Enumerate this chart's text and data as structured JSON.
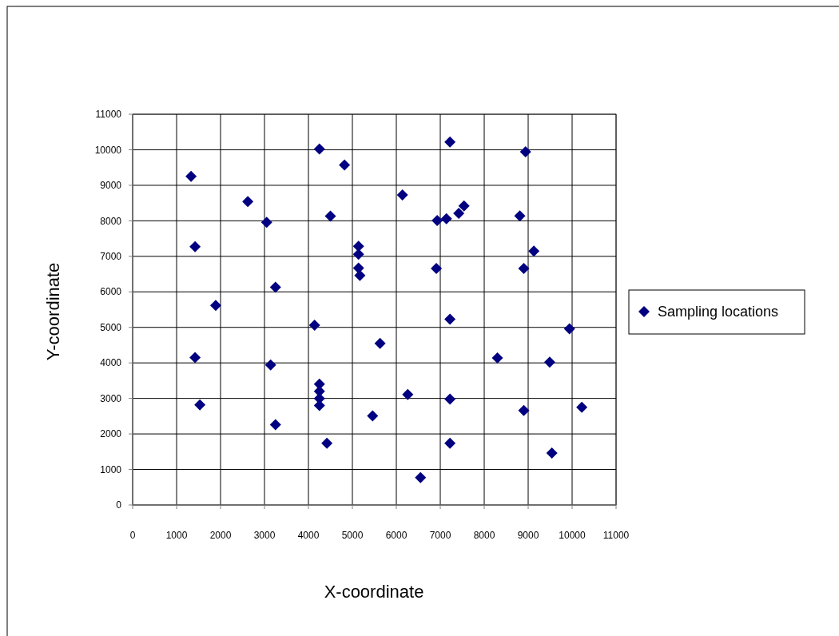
{
  "chart_data": {
    "type": "scatter",
    "xlabel": "X-coordinate",
    "ylabel": "Y-coordinate",
    "xlim": [
      0,
      11000
    ],
    "ylim": [
      0,
      11000
    ],
    "xticks": [
      0,
      1000,
      2000,
      3000,
      4000,
      5000,
      6000,
      7000,
      8000,
      9000,
      10000,
      11000
    ],
    "yticks": [
      0,
      1000,
      2000,
      3000,
      4000,
      5000,
      6000,
      7000,
      8000,
      9000,
      10000,
      11000
    ],
    "grid": true,
    "legend": "right",
    "marker": "diamond",
    "series": [
      {
        "name": "Sampling locations",
        "color": "#000080",
        "x": [
          4250,
          4820,
          1330,
          2620,
          4500,
          3050,
          1420,
          5140,
          5140,
          5140,
          5170,
          3250,
          1890,
          4140,
          1420,
          3140,
          4250,
          4250,
          4250,
          4250,
          1530,
          3250,
          4420,
          7220,
          8940,
          6140,
          7540,
          7420,
          6930,
          7140,
          8810,
          9130,
          6910,
          8900,
          7220,
          9940,
          5630,
          8300,
          9490,
          6260,
          7220,
          5460,
          8900,
          10220,
          7220,
          9540,
          6550
        ],
        "values": [
          10020,
          9570,
          9250,
          8540,
          8130,
          7960,
          7270,
          7280,
          7060,
          6670,
          6460,
          6130,
          5620,
          5060,
          4150,
          3940,
          3400,
          3200,
          3000,
          2800,
          2820,
          2260,
          1740,
          10220,
          9940,
          8730,
          8420,
          8210,
          8010,
          8060,
          8140,
          7150,
          6660,
          6660,
          5230,
          4960,
          4550,
          4140,
          4020,
          3110,
          2980,
          2510,
          2660,
          2750,
          1740,
          1460,
          770
        ]
      }
    ]
  }
}
